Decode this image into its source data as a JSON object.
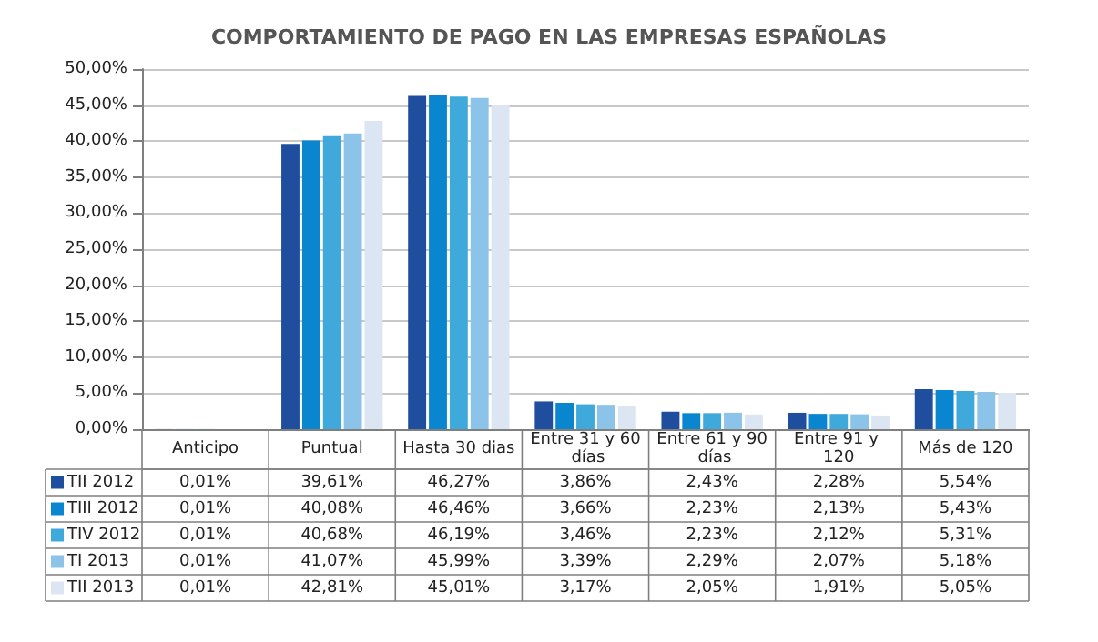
{
  "chart_data": {
    "type": "bar",
    "title": "COMPORTAMIENTO DE PAGO EN LAS EMPRESAS ESPAÑOLAS",
    "categories": [
      "Anticipo",
      "Puntual",
      "Hasta 30 dias",
      "Entre 31 y 60 días",
      "Entre 61 y 90 días",
      "Entre 91 y 120",
      "Más de 120"
    ],
    "series": [
      {
        "name": "TII 2012",
        "color": "#1f4e9f",
        "values": [
          0.01,
          39.61,
          46.27,
          3.86,
          2.43,
          2.28,
          5.54
        ],
        "value_labels": [
          "0,01%",
          "39,61%",
          "46,27%",
          "3,86%",
          "2,43%",
          "2,28%",
          "5,54%"
        ]
      },
      {
        "name": "TIII 2012",
        "color": "#0a86d0",
        "values": [
          0.01,
          40.08,
          46.46,
          3.66,
          2.23,
          2.13,
          5.43
        ],
        "value_labels": [
          "0,01%",
          "40,08%",
          "46,46%",
          "3,66%",
          "2,23%",
          "2,13%",
          "5,43%"
        ]
      },
      {
        "name": "TIV 2012",
        "color": "#3fa9dc",
        "values": [
          0.01,
          40.68,
          46.19,
          3.46,
          2.23,
          2.12,
          5.31
        ],
        "value_labels": [
          "0,01%",
          "40,68%",
          "46,19%",
          "3,46%",
          "2,23%",
          "2,12%",
          "5,31%"
        ]
      },
      {
        "name": "TI 2013",
        "color": "#8cc3e8",
        "values": [
          0.01,
          41.07,
          45.99,
          3.39,
          2.29,
          2.07,
          5.18
        ],
        "value_labels": [
          "0,01%",
          "41,07%",
          "45,99%",
          "3,39%",
          "2,29%",
          "2,07%",
          "5,18%"
        ]
      },
      {
        "name": "TII 2013",
        "color": "#dce6f2",
        "values": [
          0.01,
          42.81,
          45.01,
          3.17,
          2.05,
          1.91,
          5.05
        ],
        "value_labels": [
          "0,01%",
          "42,81%",
          "45,01%",
          "3,17%",
          "2,05%",
          "1,91%",
          "5,05%"
        ]
      }
    ],
    "ylim": [
      0,
      50
    ],
    "yticks": [
      {
        "value": 0,
        "label": "0,00%"
      },
      {
        "value": 5,
        "label": "5,00%"
      },
      {
        "value": 10,
        "label": "10,00%"
      },
      {
        "value": 15,
        "label": "15,00%"
      },
      {
        "value": 20,
        "label": "20,00%"
      },
      {
        "value": 25,
        "label": "25,00%"
      },
      {
        "value": 30,
        "label": "30,00%"
      },
      {
        "value": 35,
        "label": "35,00%"
      },
      {
        "value": 40,
        "label": "40,00%"
      },
      {
        "value": 45,
        "label": "45,00%"
      },
      {
        "value": 50,
        "label": "50,00%"
      }
    ],
    "grid": "y",
    "legend": "bottom"
  }
}
